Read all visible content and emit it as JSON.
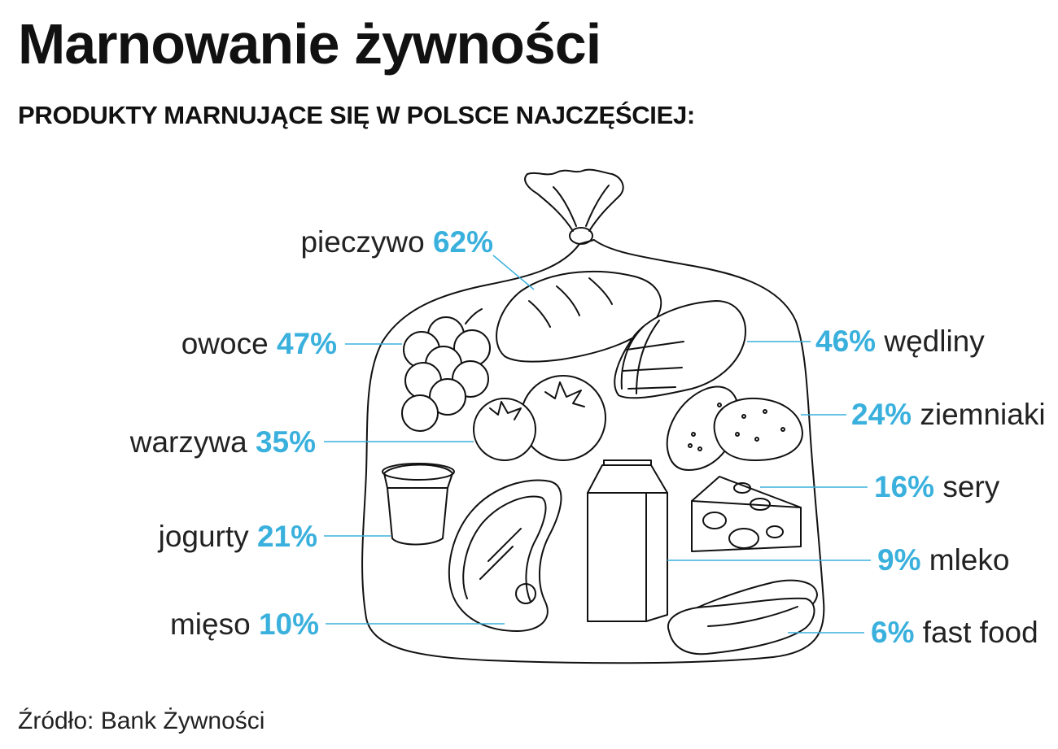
{
  "title": "Marnowanie żywności",
  "subtitle": "PRODUKTY MARNUJĄCE SIĘ W POLSCE NAJCZĘŚCIEJ:",
  "source": "Źródło: Bank Żywności",
  "colors": {
    "accent": "#3ab0dd",
    "text": "#222222",
    "line": "#111111"
  },
  "items": [
    {
      "name": "pieczywo",
      "percent": 62,
      "value": "62%",
      "side": "left",
      "icon": "bread-icon"
    },
    {
      "name": "owoce",
      "percent": 47,
      "value": "47%",
      "side": "left",
      "icon": "grapes-icon"
    },
    {
      "name": "warzywa",
      "percent": 35,
      "value": "35%",
      "side": "left",
      "icon": "tomato-icon"
    },
    {
      "name": "jogurty",
      "percent": 21,
      "value": "21%",
      "side": "left",
      "icon": "yogurt-icon"
    },
    {
      "name": "mięso",
      "percent": 10,
      "value": "10%",
      "side": "left",
      "icon": "steak-icon"
    },
    {
      "name": "wędliny",
      "percent": 46,
      "value": "46%",
      "side": "right",
      "icon": "ham-icon"
    },
    {
      "name": "ziemniaki",
      "percent": 24,
      "value": "24%",
      "side": "right",
      "icon": "potato-icon"
    },
    {
      "name": "sery",
      "percent": 16,
      "value": "16%",
      "side": "right",
      "icon": "cheese-icon"
    },
    {
      "name": "mleko",
      "percent": 9,
      "value": "9%",
      "side": "right",
      "icon": "milk-carton-icon"
    },
    {
      "name": "fast food",
      "percent": 6,
      "value": "6%",
      "side": "right",
      "icon": "hotdog-icon"
    }
  ]
}
